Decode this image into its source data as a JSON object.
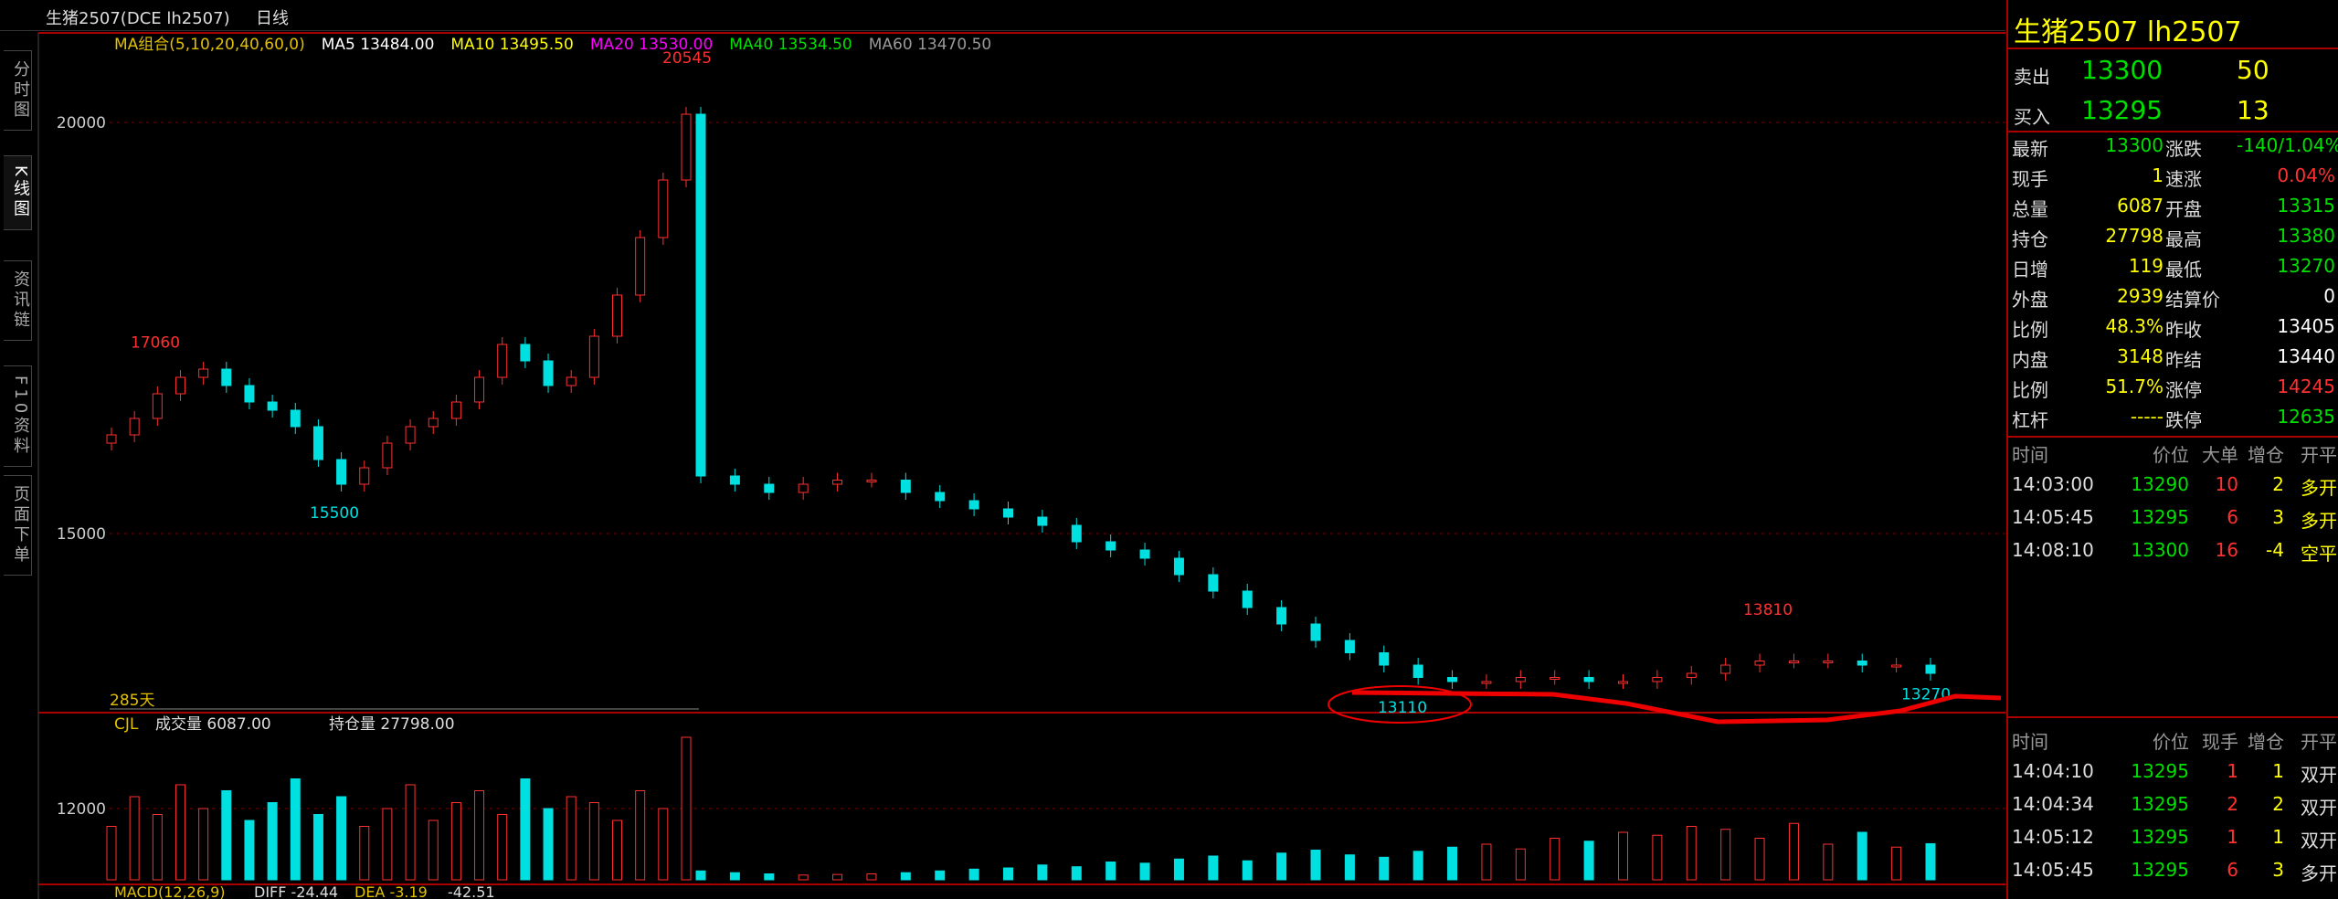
{
  "header": {
    "symbol": "生猪2507(DCE lh2507)",
    "period": "日线"
  },
  "tabs": [
    "分时图",
    "K线图",
    "资讯链",
    "F10资料",
    "页面下单"
  ],
  "indicators": [
    {
      "text": "MA组合(5,10,20,40,60,0)",
      "color": "#e0c000"
    },
    {
      "text": "MA5 13484.00",
      "color": "#ffffff"
    },
    {
      "text": "MA10 13495.50",
      "color": "#ffff00"
    },
    {
      "text": "MA20 13530.00",
      "color": "#ff00ff"
    },
    {
      "text": "MA40 13534.50",
      "color": "#00e000"
    },
    {
      "text": "MA60 13470.50",
      "color": "#999999"
    }
  ],
  "price_chart": {
    "yticks": [
      20000,
      15000
    ],
    "closes": [
      16200,
      16400,
      16700,
      16900,
      17000,
      16800,
      16600,
      16500,
      16300,
      15900,
      15600,
      15800,
      16100,
      16300,
      16400,
      16600,
      16900,
      17300,
      17100,
      16800,
      16900,
      17400,
      17900,
      18600,
      19300,
      20100,
      15700,
      15600,
      15500,
      15600,
      15650,
      15650,
      15500,
      15400,
      15300,
      15200,
      15100,
      14900,
      14800,
      14700,
      14500,
      14300,
      14100,
      13900,
      13700,
      13550,
      13400,
      13250,
      13200,
      13200,
      13250,
      13250,
      13200,
      13200,
      13250,
      13300,
      13400,
      13450,
      13450,
      13450,
      13400,
      13400,
      13300
    ],
    "annotations": [
      20545,
      17060,
      15500,
      13810,
      13110,
      13270
    ],
    "span": "285天"
  },
  "volume_pane": {
    "labels": [
      "CJL",
      "成交量 6087.00",
      "持仓量 27798.00"
    ],
    "yticks": [
      12000
    ],
    "volumes": [
      9000,
      14000,
      11000,
      16000,
      12000,
      15000,
      10000,
      13000,
      17000,
      11000,
      14000,
      9000,
      12000,
      16000,
      10000,
      13000,
      15000,
      11000,
      17000,
      12000,
      14000,
      13000,
      10000,
      15000,
      12000,
      24000,
      1500,
      1200,
      1000,
      800,
      900,
      1000,
      1200,
      1500,
      1800,
      2000,
      2500,
      2200,
      3000,
      2800,
      3500,
      4000,
      3200,
      4500,
      5000,
      4200,
      3800,
      4800,
      5500,
      6000,
      5200,
      7000,
      6500,
      8000,
      7500,
      9000,
      8500,
      7000,
      9500,
      6000,
      8000,
      5500,
      6087
    ]
  },
  "macd": [
    "MACD(12,26,9)",
    "DIFF -24.44",
    "DEA -3.19",
    "-42.51"
  ],
  "quote": {
    "title": "生猪2507  lh2507",
    "sell": [
      "卖出",
      "13300",
      "50"
    ],
    "buy": [
      "买入",
      "13295",
      "13"
    ],
    "stats": [
      [
        "最新",
        "13300",
        "涨跌",
        "-140/1.04%"
      ],
      [
        "现手",
        "1",
        "速涨",
        "0.04%"
      ],
      [
        "总量",
        "6087",
        "开盘",
        "13315"
      ],
      [
        "持仓",
        "27798",
        "最高",
        "13380"
      ],
      [
        "日增",
        "119",
        "最低",
        "13270"
      ],
      [
        "外盘",
        "2939",
        "结算价",
        "0"
      ],
      [
        "比例",
        "48.3%",
        "昨收",
        "13405"
      ],
      [
        "内盘",
        "3148",
        "昨结",
        "13440"
      ],
      [
        "比例",
        "51.7%",
        "涨停",
        "14245"
      ],
      [
        "杠杆",
        "-----",
        "跌停",
        "12635"
      ]
    ],
    "stat_colors": [
      [
        "#00e000",
        "#00e000"
      ],
      [
        "#ffff00",
        "#ff3030"
      ],
      [
        "#ffff00",
        "#00e000"
      ],
      [
        "#ffff00",
        "#00e000"
      ],
      [
        "#ffff00",
        "#00e000"
      ],
      [
        "#ffff00",
        "#ffffff"
      ],
      [
        "#ffff00",
        "#ffffff"
      ],
      [
        "#ffff00",
        "#ffffff"
      ],
      [
        "#ffff00",
        "#ff3030"
      ],
      [
        "#ffff00",
        "#00e000"
      ]
    ]
  },
  "big_trades": {
    "headers": [
      "时间",
      "价位",
      "大单",
      "增仓",
      "开平"
    ],
    "rows": [
      [
        "14:03:00",
        "13290",
        "10",
        "2",
        "多开"
      ],
      [
        "14:05:45",
        "13295",
        "6",
        "3",
        "多开"
      ],
      [
        "14:08:10",
        "13300",
        "16",
        "-4",
        "空平"
      ]
    ]
  },
  "ticks": {
    "headers": [
      "时间",
      "价位",
      "现手",
      "增仓",
      "开平"
    ],
    "rows": [
      [
        "14:04:10",
        "13295",
        "1",
        "1",
        "双开"
      ],
      [
        "14:04:34",
        "13295",
        "2",
        "2",
        "双开"
      ],
      [
        "14:05:12",
        "13295",
        "1",
        "1",
        "双开"
      ],
      [
        "14:05:45",
        "13295",
        "6",
        "3",
        "多开"
      ]
    ]
  }
}
